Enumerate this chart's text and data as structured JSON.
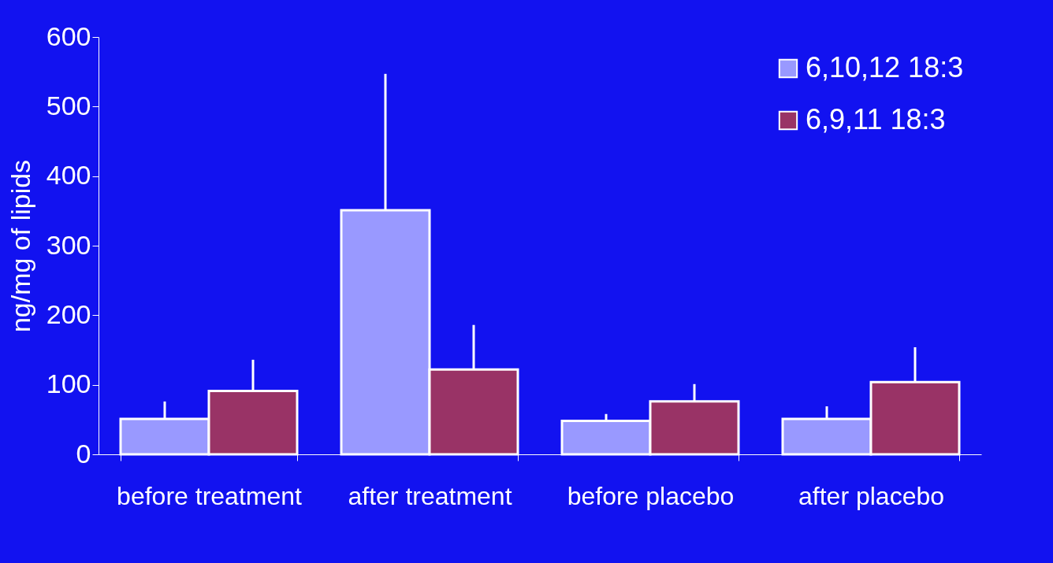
{
  "chart_data": {
    "type": "bar",
    "ylabel": "ng/mg of lipids",
    "categories": [
      "before treatment",
      "after treatment",
      "before placebo",
      "after placebo"
    ],
    "series": [
      {
        "name": "6,10,12 18:3",
        "color": "#9999ff",
        "values": [
          51,
          351,
          48,
          51
        ],
        "errors": [
          [
            51,
            76
          ],
          [
            351,
            547
          ],
          [
            48,
            58
          ],
          [
            51,
            69
          ]
        ]
      },
      {
        "name": "6,9,11 18:3",
        "color": "#993366",
        "values": [
          91,
          122,
          76,
          104
        ],
        "errors": [
          [
            91,
            136
          ],
          [
            122,
            186
          ],
          [
            76,
            101
          ],
          [
            104,
            154
          ]
        ]
      }
    ],
    "ylim": [
      0,
      600
    ],
    "yticks": [
      0,
      100,
      200,
      300,
      400,
      500,
      600
    ],
    "grid": false,
    "legend": "top right"
  }
}
